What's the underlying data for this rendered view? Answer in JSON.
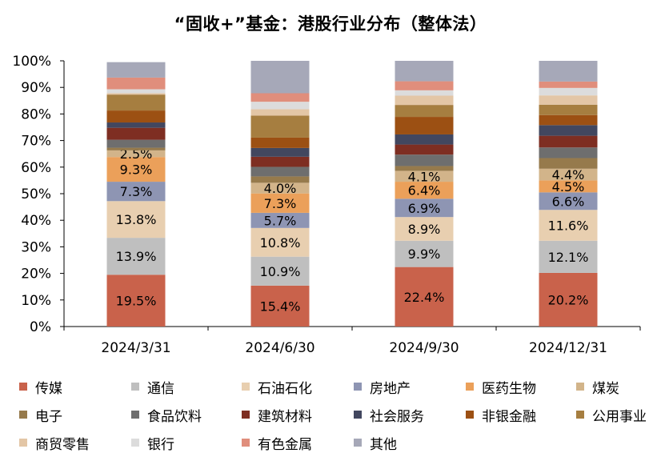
{
  "chart_data": {
    "type": "bar",
    "stacked": true,
    "title": "“固收+”基金：港股行业分布（整体法）",
    "categories": [
      "2024/3/31",
      "2024/6/30",
      "2024/9/30",
      "2024/12/31"
    ],
    "y_tick_labels": [
      "0%",
      "10%",
      "20%",
      "30%",
      "40%",
      "50%",
      "60%",
      "70%",
      "80%",
      "90%",
      "100%"
    ],
    "ylim": [
      0,
      100
    ],
    "grid": false,
    "legend_position": "bottom",
    "series": [
      {
        "name": "传媒",
        "color": "#C9624B",
        "values": [
          19.5,
          15.4,
          22.4,
          20.2
        ],
        "labels": [
          "19.5%",
          "15.4%",
          "22.4%",
          "20.2%"
        ]
      },
      {
        "name": "通信",
        "color": "#BFBFBF",
        "values": [
          13.9,
          10.9,
          9.9,
          12.1
        ],
        "labels": [
          "13.9%",
          "10.9%",
          "9.9%",
          "12.1%"
        ]
      },
      {
        "name": "石油石化",
        "color": "#E8CFB0",
        "values": [
          13.8,
          10.8,
          8.9,
          11.6
        ],
        "labels": [
          "13.8%",
          "10.8%",
          "8.9%",
          "11.6%"
        ]
      },
      {
        "name": "房地产",
        "color": "#8E95B3",
        "values": [
          7.3,
          5.7,
          6.9,
          6.6
        ],
        "labels": [
          "7.3%",
          "5.7%",
          "6.9%",
          "6.6%"
        ]
      },
      {
        "name": "医药生物",
        "color": "#EBA05A",
        "values": [
          9.3,
          7.3,
          6.4,
          4.5
        ],
        "labels": [
          "9.3%",
          "7.3%",
          "6.4%",
          "4.5%"
        ]
      },
      {
        "name": "煤炭",
        "color": "#D2B48A",
        "values": [
          2.5,
          4.0,
          4.1,
          4.4
        ],
        "labels": [
          "2.5%",
          "4.0%",
          "4.1%",
          "4.4%"
        ]
      },
      {
        "name": "电子",
        "color": "#967A4C",
        "values": [
          1.0,
          2.4,
          1.8,
          4.0
        ],
        "labels": [
          "",
          "",
          "",
          ""
        ]
      },
      {
        "name": "食品饮料",
        "color": "#6E6E6E",
        "values": [
          3.0,
          3.6,
          4.3,
          4.0
        ],
        "labels": [
          "",
          "",
          "",
          ""
        ]
      },
      {
        "name": "建筑材料",
        "color": "#7E2E22",
        "values": [
          4.5,
          3.8,
          3.8,
          4.4
        ],
        "labels": [
          "",
          "",
          "",
          ""
        ]
      },
      {
        "name": "社会服务",
        "color": "#42475F",
        "values": [
          2.0,
          3.3,
          3.8,
          4.0
        ],
        "labels": [
          "",
          "",
          "",
          ""
        ]
      },
      {
        "name": "非银金融",
        "color": "#9C5013",
        "values": [
          4.5,
          3.9,
          6.6,
          3.8
        ],
        "labels": [
          "",
          "",
          "",
          ""
        ]
      },
      {
        "name": "公用事业",
        "color": "#A67E40",
        "values": [
          6.0,
          8.3,
          4.5,
          3.9
        ],
        "labels": [
          "",
          "",
          "",
          ""
        ]
      },
      {
        "name": "商贸零售",
        "color": "#E3C6A6",
        "values": [
          0.5,
          2.4,
          3.5,
          3.5
        ],
        "labels": [
          "",
          "",
          "",
          ""
        ]
      },
      {
        "name": "银行",
        "color": "#DCDCDC",
        "values": [
          1.5,
          2.8,
          2.0,
          2.8
        ],
        "labels": [
          "",
          "",
          "",
          ""
        ]
      },
      {
        "name": "有色金属",
        "color": "#E08E7C",
        "values": [
          4.4,
          3.2,
          3.4,
          2.4
        ],
        "labels": [
          "",
          "",
          "",
          ""
        ]
      },
      {
        "name": "其他",
        "color": "#A6A8B8",
        "values": [
          5.8,
          12.2,
          7.7,
          7.8
        ],
        "labels": [
          "",
          "",
          "",
          ""
        ]
      }
    ]
  }
}
